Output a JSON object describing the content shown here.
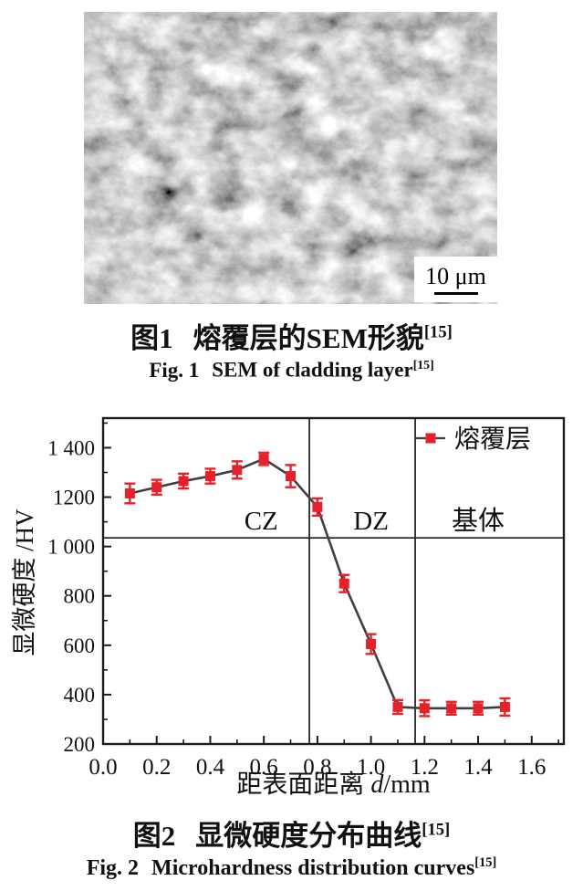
{
  "figure1": {
    "scale_bar_label": "10 μm",
    "caption_zh": {
      "prefix": "图1",
      "text": "熔覆层的SEM形貌",
      "ref": "[15]"
    },
    "caption_en": {
      "prefix": "Fig. 1",
      "text": "SEM of cladding layer",
      "ref": "[15]"
    }
  },
  "figure2": {
    "caption_zh": {
      "prefix": "图2",
      "text": "显微硬度分布曲线",
      "ref": "[15]"
    },
    "caption_en": {
      "prefix": "Fig. 2",
      "text": "Microhardness distribution curves",
      "ref": "[15]"
    }
  },
  "chart_data": {
    "type": "line",
    "title": "",
    "ylabel": "显微硬度 /HV",
    "xlabel_parts": {
      "pre": "距表面距离 ",
      "var": "d",
      "post": "/mm"
    },
    "xlim": [
      0,
      1.72
    ],
    "ylim": [
      200,
      1520
    ],
    "x_ticks": [
      0.0,
      0.2,
      0.4,
      0.6,
      0.8,
      1.0,
      1.2,
      1.4,
      1.6
    ],
    "x_tick_labels": [
      "0.0",
      "0.2",
      "0.4",
      "0.6",
      "0.8",
      "1.0",
      "1.2",
      "1.4",
      "1.6"
    ],
    "x_minor_ticks": [
      0.1,
      0.3,
      0.5,
      0.7,
      0.9,
      1.1,
      1.3,
      1.5,
      1.7
    ],
    "y_ticks": [
      200,
      400,
      600,
      800,
      1000,
      1200,
      1400
    ],
    "y_tick_labels": [
      "200",
      "400",
      "600",
      "800",
      "1 000",
      "1200",
      "1 400"
    ],
    "y_minor_ticks": [
      300,
      500,
      700,
      900,
      1100,
      1300,
      1500
    ],
    "grid": false,
    "frame_color": "#1c1c1c",
    "series": [
      {
        "name": "熔覆层",
        "marker_color": "#e62129",
        "line_color": "#3f3f3f",
        "x": [
          0.1,
          0.2,
          0.3,
          0.4,
          0.5,
          0.6,
          0.7,
          0.8,
          0.9,
          1.0,
          1.1,
          1.2,
          1.3,
          1.4,
          1.5
        ],
        "y": [
          1215,
          1240,
          1265,
          1285,
          1310,
          1355,
          1285,
          1160,
          850,
          605,
          350,
          345,
          345,
          345,
          350
        ],
        "yerr": [
          40,
          30,
          30,
          30,
          35,
          25,
          45,
          35,
          35,
          40,
          28,
          32,
          26,
          26,
          35
        ]
      }
    ],
    "zone_dividers_x": [
      0.77,
      1.165
    ],
    "hline_y": 1035,
    "zone_labels": [
      {
        "text": "CZ",
        "x": 0.59,
        "y": 1105
      },
      {
        "text": "DZ",
        "x": 1.0,
        "y": 1105
      },
      {
        "text": "基体",
        "x": 1.4,
        "y": 1105
      }
    ],
    "legend": {
      "label": "熔覆层",
      "position": "inside-top-right"
    }
  }
}
